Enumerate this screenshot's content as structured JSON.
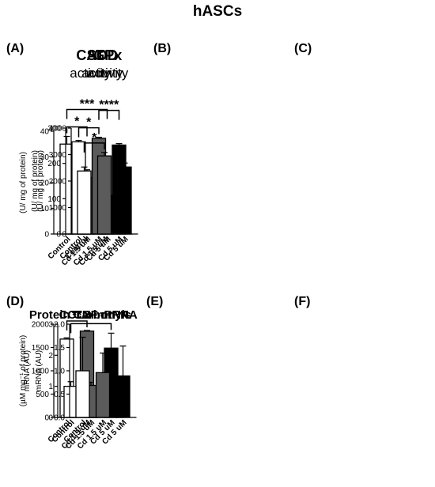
{
  "figure_title": "hASCs",
  "colors": {
    "control": "#ffffff",
    "cd15": "#5b5b5b",
    "cd5": "#000000"
  },
  "chart_data": [
    {
      "panel_label": "(A)",
      "title_main": "CAT",
      "title_sub": "activity",
      "type": "bar",
      "categories": [
        "Control",
        "Cd 1.5 uM",
        "Cd 5 uM"
      ],
      "values": [
        35,
        22,
        15
      ],
      "errors": [
        3,
        3,
        3
      ],
      "ylabel": "(U/ mg of protein)",
      "ylim": [
        0,
        40
      ],
      "yticks": [
        "0",
        "10",
        "20",
        "30",
        "40"
      ],
      "significance": [
        {
          "from": 0,
          "to": 1,
          "label": "*"
        },
        {
          "from": 0,
          "to": 2,
          "label": "***"
        }
      ]
    },
    {
      "panel_label": "(B)",
      "title_main": "SOD",
      "title_sub": "activity",
      "type": "bar",
      "categories": [
        "Control",
        "Cd 1.5 uM",
        "Cd 5 uM"
      ],
      "values": [
        261,
        271,
        252
      ],
      "errors": [
        4,
        3,
        4
      ],
      "ylabel": "(U/ mg of protein)",
      "ylim": [
        0,
        300
      ],
      "yticks": [
        "0",
        "100",
        "200",
        "300"
      ],
      "significance": [
        {
          "from": 0,
          "to": 1,
          "label": "*"
        },
        {
          "from": 1,
          "to": 2,
          "label": "****"
        }
      ]
    },
    {
      "panel_label": "(C)",
      "title_main": "GPx",
      "title_sub": "activity",
      "type": "bar",
      "categories": [
        "Control",
        "Cd 1.5 uM",
        "Cd 5 uM"
      ],
      "values": [
        2380,
        2950,
        2530
      ],
      "errors": [
        150,
        130,
        150
      ],
      "ylabel": "(U/ mg of protein)",
      "ylim": [
        0,
        4000
      ],
      "yticks": [
        "0",
        "1000",
        "2000",
        "3000",
        "4000"
      ],
      "significance": [
        {
          "from": 0,
          "to": 1,
          "label": "*"
        }
      ]
    },
    {
      "panel_label": "(D)",
      "title_main": "Protein Carbonyls",
      "title_sub": "",
      "type": "bar",
      "categories": [
        "Control",
        "Cd 1.5 uM"
      ],
      "values": [
        1680,
        1850
      ],
      "errors": [
        25,
        15
      ],
      "ylabel": "(µM mg⁻¹ of protein)",
      "ylim": [
        0,
        2000
      ],
      "yticks": [
        "0",
        "500",
        "1000",
        "1500",
        "2000"
      ],
      "significance": [
        {
          "from": 0,
          "to": 1,
          "label": "**"
        }
      ]
    },
    {
      "panel_label": "(E)",
      "title_main": "CCL2 mRNA",
      "title_sub": "",
      "type": "bar",
      "categories": [
        "Control",
        "Cd 1.5 uM",
        "Cd 5 uM"
      ],
      "values": [
        1.0,
        1.03,
        2.23
      ],
      "errors": [
        0.15,
        0.1,
        0.48
      ],
      "ylabel": "mRNA (AU)",
      "ylim": [
        0,
        3
      ],
      "yticks": [
        "0",
        "1",
        "2",
        "3"
      ],
      "significance": [
        {
          "from": 0,
          "to": 2,
          "label": "*"
        }
      ]
    },
    {
      "panel_label": "(F)",
      "title_main": "TNF mRNA",
      "title_sub": "",
      "type": "bar",
      "categories": [
        "Control",
        "Cd 1.5 uM",
        "Cd 5 uM"
      ],
      "values": [
        1.0,
        0.96,
        0.89
      ],
      "errors": [
        0.72,
        0.42,
        0.64
      ],
      "ylabel": "mRNA (AU)",
      "ylim": [
        0,
        2
      ],
      "yticks": [
        "0.0",
        "0.5",
        "1.0",
        "1.5",
        "2.0"
      ],
      "significance": []
    }
  ]
}
